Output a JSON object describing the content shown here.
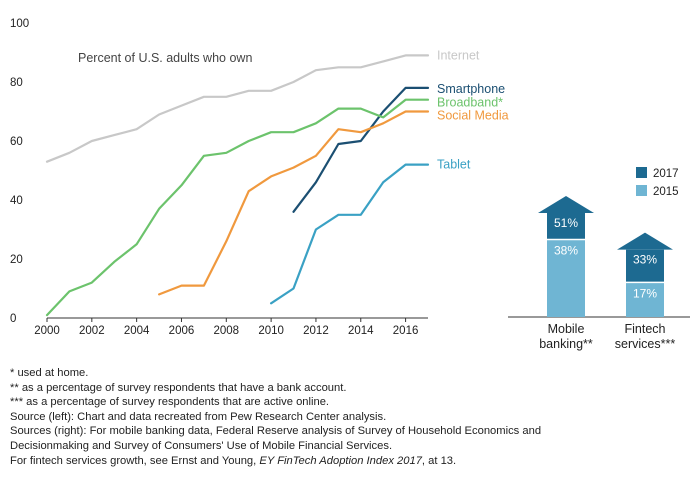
{
  "chart_data": [
    {
      "type": "line",
      "title": "Percent of U.S. adults who own",
      "xlabel": "",
      "ylabel": "",
      "xlim": [
        2000,
        2017
      ],
      "ylim": [
        0,
        100
      ],
      "xticks": [
        "2000",
        "2002",
        "2004",
        "2006",
        "2008",
        "2010",
        "2012",
        "2014",
        "2016"
      ],
      "yticks": [
        "0",
        "20",
        "40",
        "60",
        "80",
        "100"
      ],
      "grid": false,
      "series": [
        {
          "name": "Internet",
          "color": "#c8c8c8",
          "x": [
            2000,
            2001,
            2002,
            2003,
            2004,
            2005,
            2006,
            2007,
            2008,
            2009,
            2010,
            2011,
            2012,
            2013,
            2014,
            2015,
            2016,
            2017
          ],
          "y": [
            53,
            56,
            60,
            62,
            64,
            69,
            72,
            75,
            75,
            77,
            77,
            80,
            84,
            85,
            85,
            87,
            89,
            89
          ]
        },
        {
          "name": "Smartphone",
          "color": "#1b4f72",
          "x": [
            2011,
            2012,
            2013,
            2014,
            2015,
            2016,
            2017
          ],
          "y": [
            36,
            46,
            59,
            60,
            70,
            78,
            78
          ]
        },
        {
          "name": "Broadband*",
          "color": "#6cc36c",
          "x": [
            2000,
            2001,
            2002,
            2003,
            2004,
            2005,
            2006,
            2007,
            2008,
            2009,
            2010,
            2011,
            2012,
            2013,
            2014,
            2015,
            2016,
            2017
          ],
          "y": [
            1,
            9,
            12,
            19,
            25,
            37,
            45,
            55,
            56,
            60,
            63,
            63,
            66,
            71,
            71,
            68,
            74,
            74
          ]
        },
        {
          "name": "Social Media",
          "color": "#f0993e",
          "x": [
            2005,
            2006,
            2007,
            2008,
            2009,
            2010,
            2011,
            2012,
            2013,
            2014,
            2015,
            2016,
            2017
          ],
          "y": [
            8,
            11,
            11,
            26,
            43,
            48,
            51,
            55,
            64,
            63,
            66,
            70,
            70
          ]
        },
        {
          "name": "Tablet",
          "color": "#3aa1c4",
          "x": [
            2010,
            2011,
            2012,
            2013,
            2014,
            2015,
            2016,
            2017
          ],
          "y": [
            5,
            10,
            30,
            35,
            35,
            46,
            52,
            52
          ]
        }
      ]
    },
    {
      "type": "bar",
      "title": "",
      "categories": [
        "Mobile banking**",
        "Fintech services***"
      ],
      "category_lines": [
        [
          "Mobile",
          "banking**"
        ],
        [
          "Fintech",
          "services***"
        ]
      ],
      "series": [
        {
          "name": "2015",
          "color": "#6fb5d3",
          "values": [
            38,
            17
          ],
          "labels": [
            "38%",
            "17%"
          ]
        },
        {
          "name": "2017",
          "color": "#1d6a91",
          "values": [
            51,
            33
          ],
          "labels": [
            "51%",
            "33%"
          ]
        }
      ],
      "ylim": [
        0,
        60
      ],
      "legend": "top-right"
    }
  ],
  "footnotes": {
    "line1": "* used at home.",
    "line2": "** as a percentage of survey respondents that have a bank account.",
    "line3": "*** as a percentage of survey respondents that are active online.",
    "line4": "Source (left): Chart and data recreated from Pew Research Center analysis.",
    "line5": "Sources (right): For mobile banking data, Federal Reserve analysis of Survey of Household Economics and",
    "line6": "Decisionmaking and Survey of Consumers' Use of Mobile Financial Services.",
    "line7_prefix": "For fintech services growth, see Ernst and Young, ",
    "line7_title": "EY FinTech Adoption Index 2017",
    "line7_suffix": ", at 13."
  }
}
